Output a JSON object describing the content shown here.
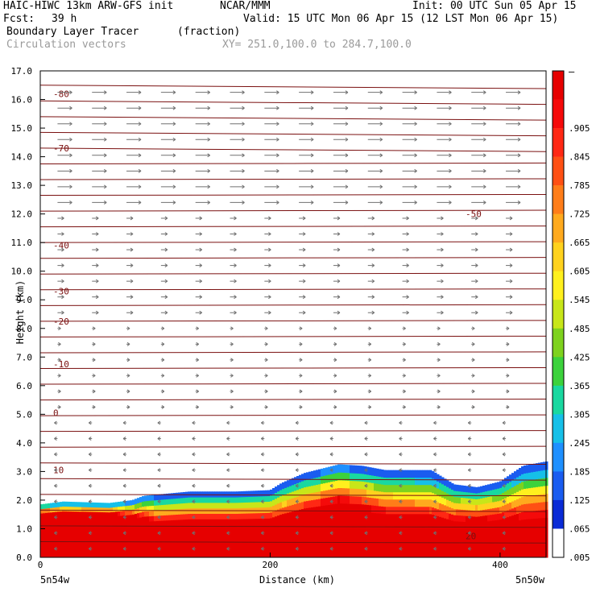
{
  "header": {
    "model": "HAIC-HIWC 13km ARW-GFS init",
    "org": "NCAR/MMM",
    "init": "Init: 00 UTC Sun 05 Apr 15",
    "fcst_label": "Fcst:",
    "fcst_value": "39 h",
    "valid": "Valid: 15 UTC Mon 06 Apr 15 (12 LST Mon 06 Apr 15)",
    "field": "Boundary Layer Tracer",
    "field_units": "(fraction)",
    "overlay": "Circulation vectors",
    "xy": "XY= 251.0,100.0 to 284.7,100.0"
  },
  "axes": {
    "ylabel": "Height (km)",
    "xlabel": "Distance (km)",
    "x_left_label": "5n54w",
    "x_right_label": "5n50w"
  },
  "colorbar": {
    "top_label": "–",
    "labels": [
      ".905",
      ".845",
      ".785",
      ".725",
      ".665",
      ".605",
      ".545",
      ".485",
      ".425",
      ".365",
      ".305",
      ".245",
      ".185",
      ".125",
      ".065",
      ".005"
    ],
    "colors": [
      "#ffffff",
      "#0a2bd6",
      "#1a5cf0",
      "#1e90ff",
      "#16c0e8",
      "#19d8a0",
      "#3cd23c",
      "#7ed21e",
      "#c8e619",
      "#fff01e",
      "#ffd21e",
      "#ffaa1e",
      "#ff7d19",
      "#ff5014",
      "#ff2814",
      "#f50a0a",
      "#e60000"
    ]
  },
  "chart_data": {
    "type": "heatmap",
    "title": "Boundary Layer Tracer",
    "xlabel": "Distance (km)",
    "ylabel": "Height (km)",
    "xlim": [
      0,
      440
    ],
    "ylim": [
      0.0,
      17.0
    ],
    "x_ticks": [
      0,
      200,
      400
    ],
    "y_ticks": [
      "0.0",
      "1.0",
      "2.0",
      "3.0",
      "4.0",
      "5.0",
      "6.0",
      "7.0",
      "8.0",
      "9.0",
      "10.0",
      "11.0",
      "12.0",
      "13.0",
      "14.0",
      "15.0",
      "16.0",
      "17.0"
    ],
    "tracer_top_km": {
      "x": [
        0,
        20,
        60,
        80,
        90,
        130,
        170,
        200,
        210,
        230,
        240,
        260,
        280,
        300,
        340,
        360,
        380,
        400,
        420,
        440
      ],
      "y": [
        1.85,
        1.95,
        1.9,
        2.0,
        2.15,
        2.3,
        2.3,
        2.35,
        2.6,
        2.95,
        3.05,
        3.25,
        3.2,
        3.05,
        3.05,
        2.55,
        2.45,
        2.65,
        3.2,
        3.35
      ]
    },
    "mixed_layer_top_km": {
      "x": [
        0,
        60,
        90,
        100,
        200,
        220,
        260,
        300,
        360,
        440
      ],
      "y": [
        1.55,
        1.55,
        1.4,
        1.25,
        1.3,
        1.5,
        2.0,
        1.5,
        1.3,
        1.4
      ]
    },
    "temperature_contours": {
      "levels_C": [
        -80,
        -70,
        -50,
        -40,
        -30,
        -20,
        -10,
        0,
        10,
        20
      ],
      "labels": [
        "-80",
        "-70",
        "-50",
        "-40",
        "-30",
        "-20",
        "-10",
        "0",
        "10",
        "20"
      ]
    }
  }
}
